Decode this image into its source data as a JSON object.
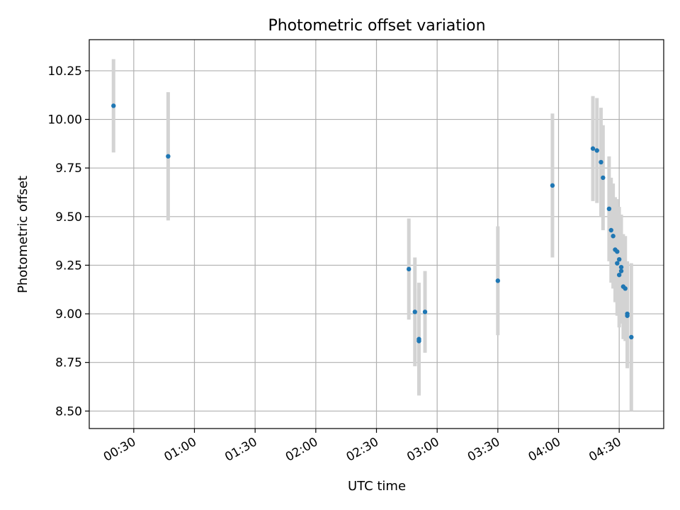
{
  "chart_data": {
    "type": "scatter",
    "title": "Photometric offset variation",
    "xlabel": "UTC time",
    "ylabel": "Photometric offset",
    "x_ticks": [
      "00:30",
      "01:00",
      "01:30",
      "02:00",
      "02:30",
      "03:00",
      "03:30",
      "04:00",
      "04:30"
    ],
    "y_ticks": [
      "8.50",
      "8.75",
      "9.00",
      "9.25",
      "9.50",
      "9.75",
      "10.00",
      "10.25"
    ],
    "xlim": [
      "00:08",
      "04:52"
    ],
    "ylim": [
      8.41,
      10.41
    ],
    "grid": true,
    "colors": {
      "marker": "#1f77b4",
      "errorbar": "#d3d3d3",
      "grid": "#b0b0b0"
    },
    "points": [
      {
        "x": "00:20",
        "y": 10.07,
        "err": 0.24
      },
      {
        "x": "00:47",
        "y": 9.81,
        "err": 0.33
      },
      {
        "x": "02:46",
        "y": 9.23,
        "err": 0.26
      },
      {
        "x": "02:49",
        "y": 9.01,
        "err": 0.28
      },
      {
        "x": "02:51",
        "y": 8.87,
        "err": 0.29
      },
      {
        "x": "02:51",
        "y": 8.86,
        "err": 0.27
      },
      {
        "x": "02:54",
        "y": 9.01,
        "err": 0.21
      },
      {
        "x": "03:30",
        "y": 9.17,
        "err": 0.28
      },
      {
        "x": "03:57",
        "y": 9.66,
        "err": 0.37
      },
      {
        "x": "04:17",
        "y": 9.85,
        "err": 0.27
      },
      {
        "x": "04:19",
        "y": 9.84,
        "err": 0.27
      },
      {
        "x": "04:21",
        "y": 9.78,
        "err": 0.28
      },
      {
        "x": "04:22",
        "y": 9.7,
        "err": 0.27
      },
      {
        "x": "04:25",
        "y": 9.54,
        "err": 0.27
      },
      {
        "x": "04:26",
        "y": 9.43,
        "err": 0.27
      },
      {
        "x": "04:27",
        "y": 9.4,
        "err": 0.27
      },
      {
        "x": "04:28",
        "y": 9.33,
        "err": 0.27
      },
      {
        "x": "04:29",
        "y": 9.32,
        "err": 0.27
      },
      {
        "x": "04:29",
        "y": 9.26,
        "err": 0.27
      },
      {
        "x": "04:30",
        "y": 9.28,
        "err": 0.27
      },
      {
        "x": "04:30",
        "y": 9.2,
        "err": 0.27
      },
      {
        "x": "04:31",
        "y": 9.24,
        "err": 0.27
      },
      {
        "x": "04:31",
        "y": 9.22,
        "err": 0.27
      },
      {
        "x": "04:32",
        "y": 9.14,
        "err": 0.27
      },
      {
        "x": "04:33",
        "y": 9.13,
        "err": 0.27
      },
      {
        "x": "04:34",
        "y": 9.0,
        "err": 0.27
      },
      {
        "x": "04:34",
        "y": 8.99,
        "err": 0.27
      },
      {
        "x": "04:36",
        "y": 8.88,
        "err": 0.38
      }
    ]
  }
}
